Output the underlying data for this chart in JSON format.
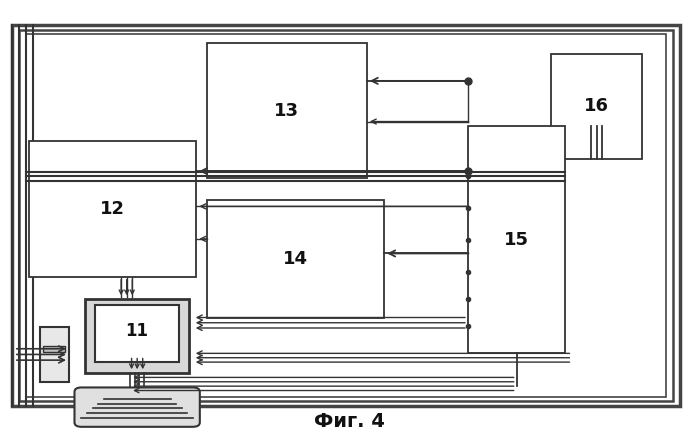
{
  "title": "Фиг. 4",
  "bg": "#ffffff",
  "lc": "#333333",
  "fw": 6.99,
  "fh": 4.4,
  "dpi": 100,
  "b13": [
    0.295,
    0.595,
    0.23,
    0.31
  ],
  "b12": [
    0.04,
    0.37,
    0.24,
    0.31
  ],
  "b14": [
    0.295,
    0.275,
    0.255,
    0.27
  ],
  "b15": [
    0.67,
    0.195,
    0.14,
    0.52
  ],
  "b16": [
    0.79,
    0.64,
    0.13,
    0.24
  ]
}
